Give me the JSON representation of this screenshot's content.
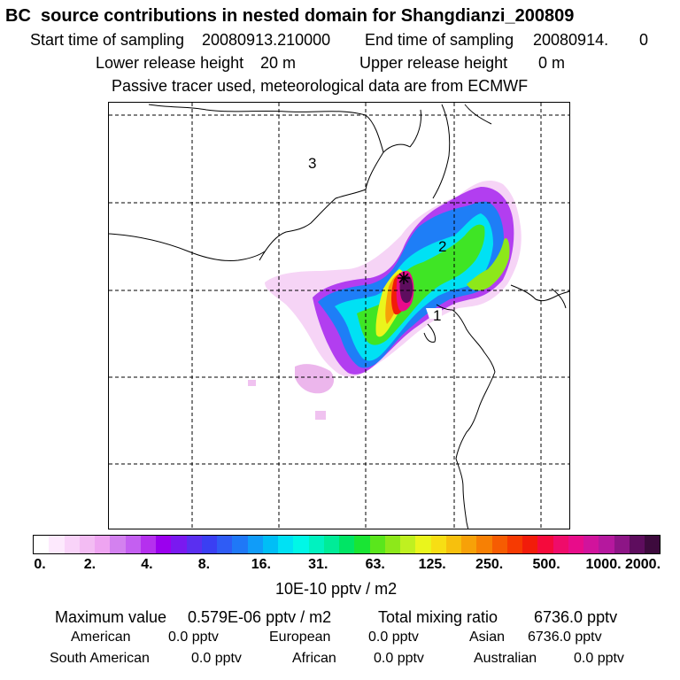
{
  "header": {
    "title": "BC  source contributions in nested domain for Shangdianzi_200809",
    "start_label": "Start time of sampling",
    "start_value": "20080913.210000",
    "end_label": "End time of sampling",
    "end_value": "20080914.",
    "end_extra": "0",
    "lower_label": "Lower release height",
    "lower_value": "20 m",
    "upper_label": "Upper release height",
    "upper_value": "0 m",
    "note": "Passive tracer used, meteorological data are from ECMWF"
  },
  "map": {
    "region_labels": [
      "1",
      "2",
      "3"
    ],
    "receptor_symbol": "star"
  },
  "colorbar": {
    "colors": [
      "#ffffff",
      "#fde9fd",
      "#f9d3f9",
      "#f3bcf3",
      "#eea4f1",
      "#d381ef",
      "#c45ff1",
      "#b530ee",
      "#9b00ee",
      "#7a19f0",
      "#5a2ff0",
      "#3a3ff3",
      "#2f5cf5",
      "#1f78f7",
      "#109cf9",
      "#00bef6",
      "#00e1f4",
      "#00f7e7",
      "#00f2c0",
      "#00ec98",
      "#00e565",
      "#19e534",
      "#5ae61c",
      "#8de81a",
      "#bff020",
      "#eaf51c",
      "#f7de14",
      "#f7c00d",
      "#f7a108",
      "#f78004",
      "#f65c02",
      "#f63a02",
      "#f21c0a",
      "#f50a3c",
      "#ef0c6a",
      "#e80c8a",
      "#d1139c",
      "#b5189e",
      "#8d1586",
      "#5e0d5e",
      "#3d0a3d"
    ],
    "ticks": [
      "0.",
      "2.",
      "4.",
      "8.",
      "16.",
      "31.",
      "63.",
      "125.",
      "250.",
      "500.",
      "1000.",
      "2000."
    ],
    "unit": "10E-10 pptv / m2"
  },
  "footer": {
    "max_label": "Maximum value",
    "max_value": "0.579E-06 pptv / m2",
    "total_label": "Total mixing ratio",
    "total_value": "6736.0 pptv",
    "regions": [
      {
        "name": "American",
        "value": "0.0 pptv"
      },
      {
        "name": "European",
        "value": "0.0 pptv"
      },
      {
        "name": "Asian",
        "value": "6736.0 pptv"
      },
      {
        "name": "South American",
        "value": "0.0 pptv"
      },
      {
        "name": "African",
        "value": "0.0 pptv"
      },
      {
        "name": "Australian",
        "value": "0.0 pptv"
      }
    ]
  }
}
